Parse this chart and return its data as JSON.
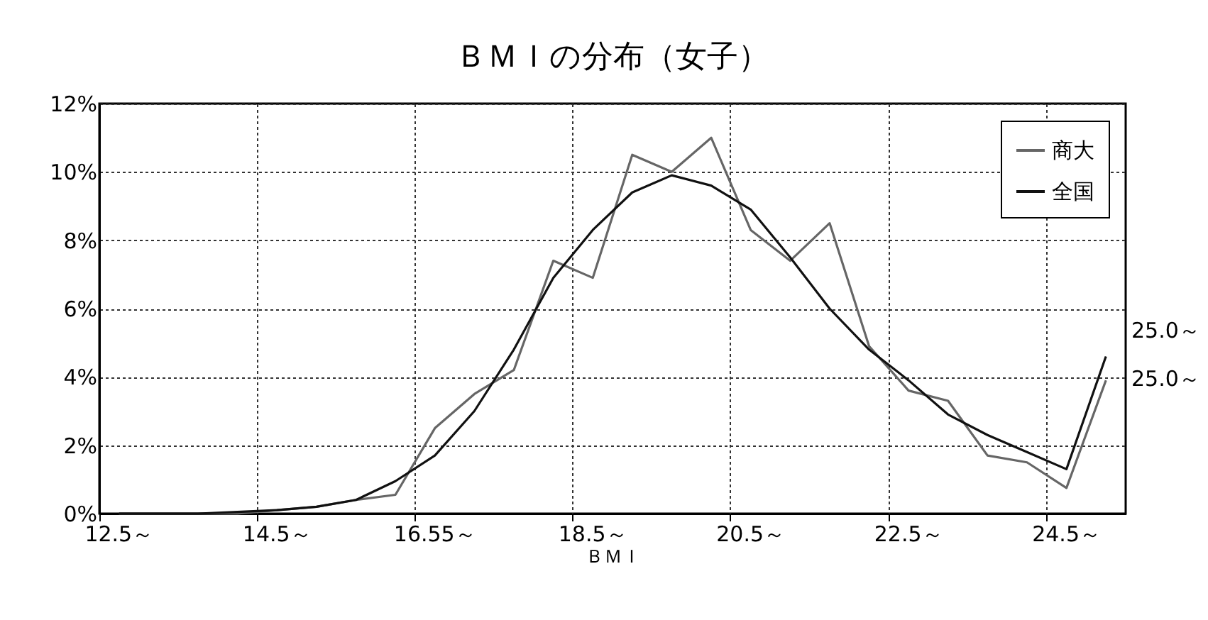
{
  "chart_data": {
    "type": "line",
    "title": "ＢＭＩの分布（女子）",
    "xlabel": "ＢＭＩ",
    "categories": [
      "12.5～",
      null,
      null,
      null,
      "14.5～",
      null,
      null,
      null,
      "16.55～",
      null,
      null,
      null,
      "18.5～",
      null,
      null,
      null,
      "20.5～",
      null,
      null,
      null,
      "22.5～",
      null,
      null,
      null,
      "24.5～",
      null
    ],
    "annotations": [
      "25.0～",
      "25.0～"
    ],
    "series": [
      {
        "name": "商大",
        "color": "#666666",
        "values": [
          0,
          0,
          0,
          0,
          0.1,
          0.2,
          0.4,
          0.55,
          2.5,
          3.5,
          4.2,
          7.4,
          6.9,
          10.5,
          10.0,
          11.0,
          8.3,
          7.4,
          8.5,
          4.9,
          3.6,
          3.3,
          1.7,
          1.5,
          0.75,
          3.9
        ]
      },
      {
        "name": "全国",
        "color": "#111111",
        "values": [
          0,
          0,
          0,
          0.05,
          0.1,
          0.2,
          0.4,
          0.95,
          1.7,
          3.0,
          4.8,
          6.9,
          8.3,
          9.4,
          9.9,
          9.6,
          8.9,
          7.5,
          6.0,
          4.8,
          3.9,
          2.9,
          2.3,
          1.8,
          1.3,
          4.6
        ]
      }
    ],
    "ylim": [
      0,
      12
    ],
    "yticks": [
      {
        "value": 0,
        "label": "0%"
      },
      {
        "value": 2,
        "label": "2%"
      },
      {
        "value": 4,
        "label": "4%"
      },
      {
        "value": 6,
        "label": "6%"
      },
      {
        "value": 8,
        "label": "8%"
      },
      {
        "value": 10,
        "label": "10%"
      },
      {
        "value": 12,
        "label": "12%"
      }
    ],
    "grid": true,
    "legend": "top right"
  }
}
